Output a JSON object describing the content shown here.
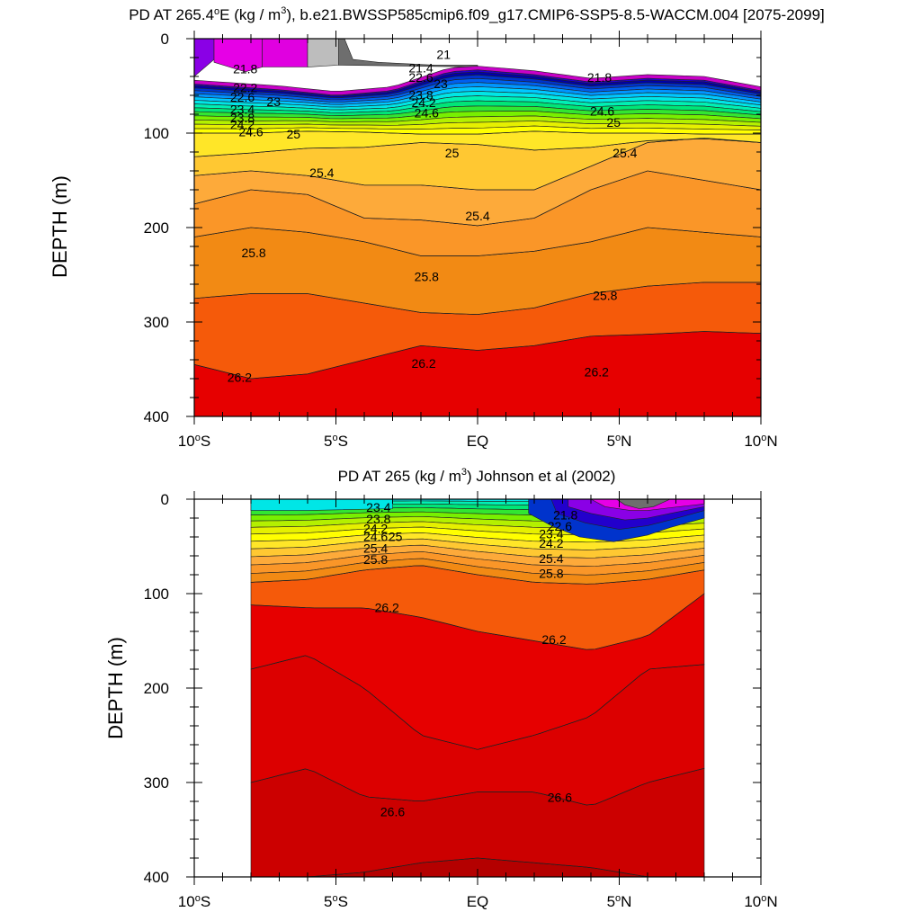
{
  "chart_data": [
    {
      "type": "contour",
      "title": "PD AT 265.4°E (kg / m³), b.e21.BWSSP585cmip6.f09_g17.CMIP6-SSP5-8.5-WACCM.004 [2075-2099]",
      "title_parts": {
        "prefix": "PD AT 265.4",
        "deg": "o",
        "mid": "E (kg / m",
        "sup": "3",
        "suffix": "), b.e21.BWSSP585cmip6.f09_g17.CMIP6-SSP5-8.5-WACCM.004 [2075-2099]"
      },
      "ylabel": "DEPTH (m)",
      "xlim": [
        -10,
        10
      ],
      "ylim": [
        0,
        400
      ],
      "y_inverted": true,
      "x_ticks": [
        -10,
        -5,
        0,
        5,
        10
      ],
      "y_ticks": [
        0,
        100,
        200,
        300,
        400
      ],
      "data_x_range": [
        -10,
        10
      ],
      "colors": {
        "21.6": "#e600e6",
        "21.8": "#8a00e6",
        "22.0": "#5500ff",
        "22.2": "#2200cc",
        "22.4": "#0000aa",
        "22.6": "#0033cc",
        "22.8": "#0060ee",
        "23.0": "#0096ff",
        "23.2": "#00c8ff",
        "23.4": "#00e6e6",
        "23.6": "#00f0b4",
        "23.8": "#00e678",
        "24.0": "#32e632",
        "24.2": "#78f000",
        "24.4": "#b4f000",
        "24.6": "#e6f000",
        "24.8": "#ffff00",
        "25.0": "#ffe628",
        "25.2": "#ffc832",
        "25.4": "#fdaa3a",
        "25.6": "#fa9628",
        "25.8": "#f28a14",
        "26.0": "#f55a0a",
        "26.2": "#ff2000",
        "26.4": "#e60000",
        "26.6": "#cc0000"
      },
      "surface_light": [
        "21.0",
        "21.2",
        "21.4"
      ],
      "contour_levels": [
        21,
        21.2,
        21.4,
        21.6,
        21.8,
        22,
        22.2,
        22.4,
        22.6,
        22.8,
        23,
        23.2,
        23.4,
        23.6,
        23.8,
        24,
        24.2,
        24.4,
        24.6,
        24.8,
        25,
        25.2,
        25.4,
        25.6,
        25.8,
        26,
        26.2,
        26.4
      ],
      "isopycnal_depths": {
        "x": [
          -10,
          -8,
          -6,
          -4,
          -2,
          0,
          2,
          4,
          6,
          8,
          10
        ],
        "25.0": [
          100,
          100,
          98,
          99,
          101,
          101,
          98,
          100,
          100,
          101,
          101
        ],
        "25.2": [
          125,
          121,
          116,
          115,
          110,
          112,
          118,
          115,
          108,
          106,
          110
        ],
        "25.4": [
          145,
          140,
          145,
          155,
          155,
          160,
          160,
          135,
          110,
          105,
          110
        ],
        "25.6": [
          175,
          160,
          165,
          190,
          192,
          198,
          190,
          160,
          140,
          150,
          160
        ],
        "25.8": [
          210,
          200,
          205,
          215,
          230,
          230,
          225,
          215,
          200,
          205,
          210
        ],
        "26.0": [
          275,
          270,
          270,
          280,
          290,
          292,
          285,
          270,
          262,
          258,
          258
        ],
        "26.2": [
          345,
          360,
          355,
          340,
          325,
          330,
          325,
          315,
          313,
          310,
          312
        ],
        "26.4": [
          400,
          400,
          400,
          400,
          400,
          400,
          400,
          400,
          400,
          365,
          365
        ]
      },
      "contour_labels": [
        {
          "text": "21",
          "x": -1.2,
          "y": 18
        },
        {
          "text": "21.8",
          "x": -8.2,
          "y": 33
        },
        {
          "text": "21.4",
          "x": -2.0,
          "y": 32
        },
        {
          "text": "21.8",
          "x": 4.3,
          "y": 42
        },
        {
          "text": "22.2",
          "x": -8.2,
          "y": 53
        },
        {
          "text": "22.6",
          "x": -2.0,
          "y": 42
        },
        {
          "text": "22.6",
          "x": -8.3,
          "y": 63
        },
        {
          "text": "23",
          "x": -7.2,
          "y": 68
        },
        {
          "text": "23",
          "x": -1.3,
          "y": 49
        },
        {
          "text": "23.4",
          "x": -8.3,
          "y": 76
        },
        {
          "text": "23.8",
          "x": -2.0,
          "y": 61
        },
        {
          "text": "23.8",
          "x": -8.3,
          "y": 85
        },
        {
          "text": "24.2",
          "x": -1.9,
          "y": 69
        },
        {
          "text": "24.2",
          "x": -8.3,
          "y": 92
        },
        {
          "text": "24.6",
          "x": -1.8,
          "y": 80
        },
        {
          "text": "24.6",
          "x": -8.0,
          "y": 100
        },
        {
          "text": "24.6",
          "x": 4.4,
          "y": 78
        },
        {
          "text": "25",
          "x": -6.5,
          "y": 102
        },
        {
          "text": "25",
          "x": -0.9,
          "y": 122
        },
        {
          "text": "25",
          "x": 4.8,
          "y": 90
        },
        {
          "text": "25.4",
          "x": -5.5,
          "y": 143
        },
        {
          "text": "25.4",
          "x": 0.0,
          "y": 189
        },
        {
          "text": "25.4",
          "x": 5.2,
          "y": 122
        },
        {
          "text": "25.8",
          "x": -7.9,
          "y": 228
        },
        {
          "text": "25.8",
          "x": -1.8,
          "y": 253
        },
        {
          "text": "25.8",
          "x": 4.5,
          "y": 273
        },
        {
          "text": "26.2",
          "x": -8.4,
          "y": 360
        },
        {
          "text": "26.2",
          "x": -1.9,
          "y": 345
        },
        {
          "text": "26.2",
          "x": 4.2,
          "y": 354
        }
      ]
    },
    {
      "type": "contour",
      "title": "PD AT 265 (kg / m³) Johnson et al (2002)",
      "title_parts": {
        "prefix": "PD AT 265 (kg / m",
        "sup": "3",
        "suffix": ") Johnson et al (2002)"
      },
      "ylabel": "DEPTH (m)",
      "xlim": [
        -10,
        10
      ],
      "ylim": [
        0,
        400
      ],
      "y_inverted": true,
      "x_ticks": [
        -10,
        -5,
        0,
        5,
        10
      ],
      "y_ticks": [
        0,
        100,
        200,
        300,
        400
      ],
      "data_x_range": [
        -8,
        8
      ],
      "contour_levels": [
        21.8,
        22.2,
        22.6,
        23.0,
        23.4,
        23.8,
        24.2,
        24.6,
        25.0,
        25.4,
        25.8,
        26.2,
        26.6
      ],
      "isopycnal_depths": {
        "x": [
          -8,
          -6,
          -4,
          -2,
          0,
          2,
          4,
          6,
          8
        ],
        "26.0": [
          88,
          85,
          75,
          70,
          80,
          88,
          90,
          85,
          75
        ],
        "26.2": [
          112,
          115,
          115,
          125,
          140,
          150,
          160,
          145,
          100
        ],
        "26.4": [
          180,
          165,
          200,
          250,
          265,
          250,
          230,
          180,
          175
        ],
        "26.6": [
          300,
          285,
          315,
          320,
          310,
          310,
          325,
          300,
          285
        ],
        "26.8": [
          400,
          400,
          395,
          385,
          380,
          385,
          390,
          400,
          400
        ]
      },
      "contour_labels": [
        {
          "text": "23.4",
          "x": -3.5,
          "y": 10
        },
        {
          "text": "23.8",
          "x": -3.5,
          "y": 22
        },
        {
          "text": "24.2",
          "x": -3.6,
          "y": 32
        },
        {
          "text": "24.6",
          "x": -3.6,
          "y": 41
        },
        {
          "text": "25",
          "x": -2.9,
          "y": 41
        },
        {
          "text": "25.4",
          "x": -3.6,
          "y": 53
        },
        {
          "text": "25.8",
          "x": -3.6,
          "y": 65
        },
        {
          "text": "21.8",
          "x": 3.1,
          "y": 18
        },
        {
          "text": "22.6",
          "x": 2.9,
          "y": 30
        },
        {
          "text": "23.4",
          "x": 2.6,
          "y": 38
        },
        {
          "text": "24.2",
          "x": 2.6,
          "y": 48
        },
        {
          "text": "25.4",
          "x": 2.6,
          "y": 64
        },
        {
          "text": "25.8",
          "x": 2.6,
          "y": 80
        },
        {
          "text": "26.2",
          "x": -3.2,
          "y": 116
        },
        {
          "text": "26.2",
          "x": 2.7,
          "y": 150
        },
        {
          "text": "26.6",
          "x": -3.0,
          "y": 332
        },
        {
          "text": "26.6",
          "x": 2.9,
          "y": 317
        }
      ]
    }
  ],
  "x_tick_labels": [
    {
      "main": "10",
      "deg": "o",
      "hem": "S"
    },
    {
      "main": "5",
      "deg": "o",
      "hem": "S"
    },
    {
      "main": "EQ",
      "deg": "",
      "hem": ""
    },
    {
      "main": "5",
      "deg": "o",
      "hem": "N"
    },
    {
      "main": "10",
      "deg": "o",
      "hem": "N"
    }
  ]
}
